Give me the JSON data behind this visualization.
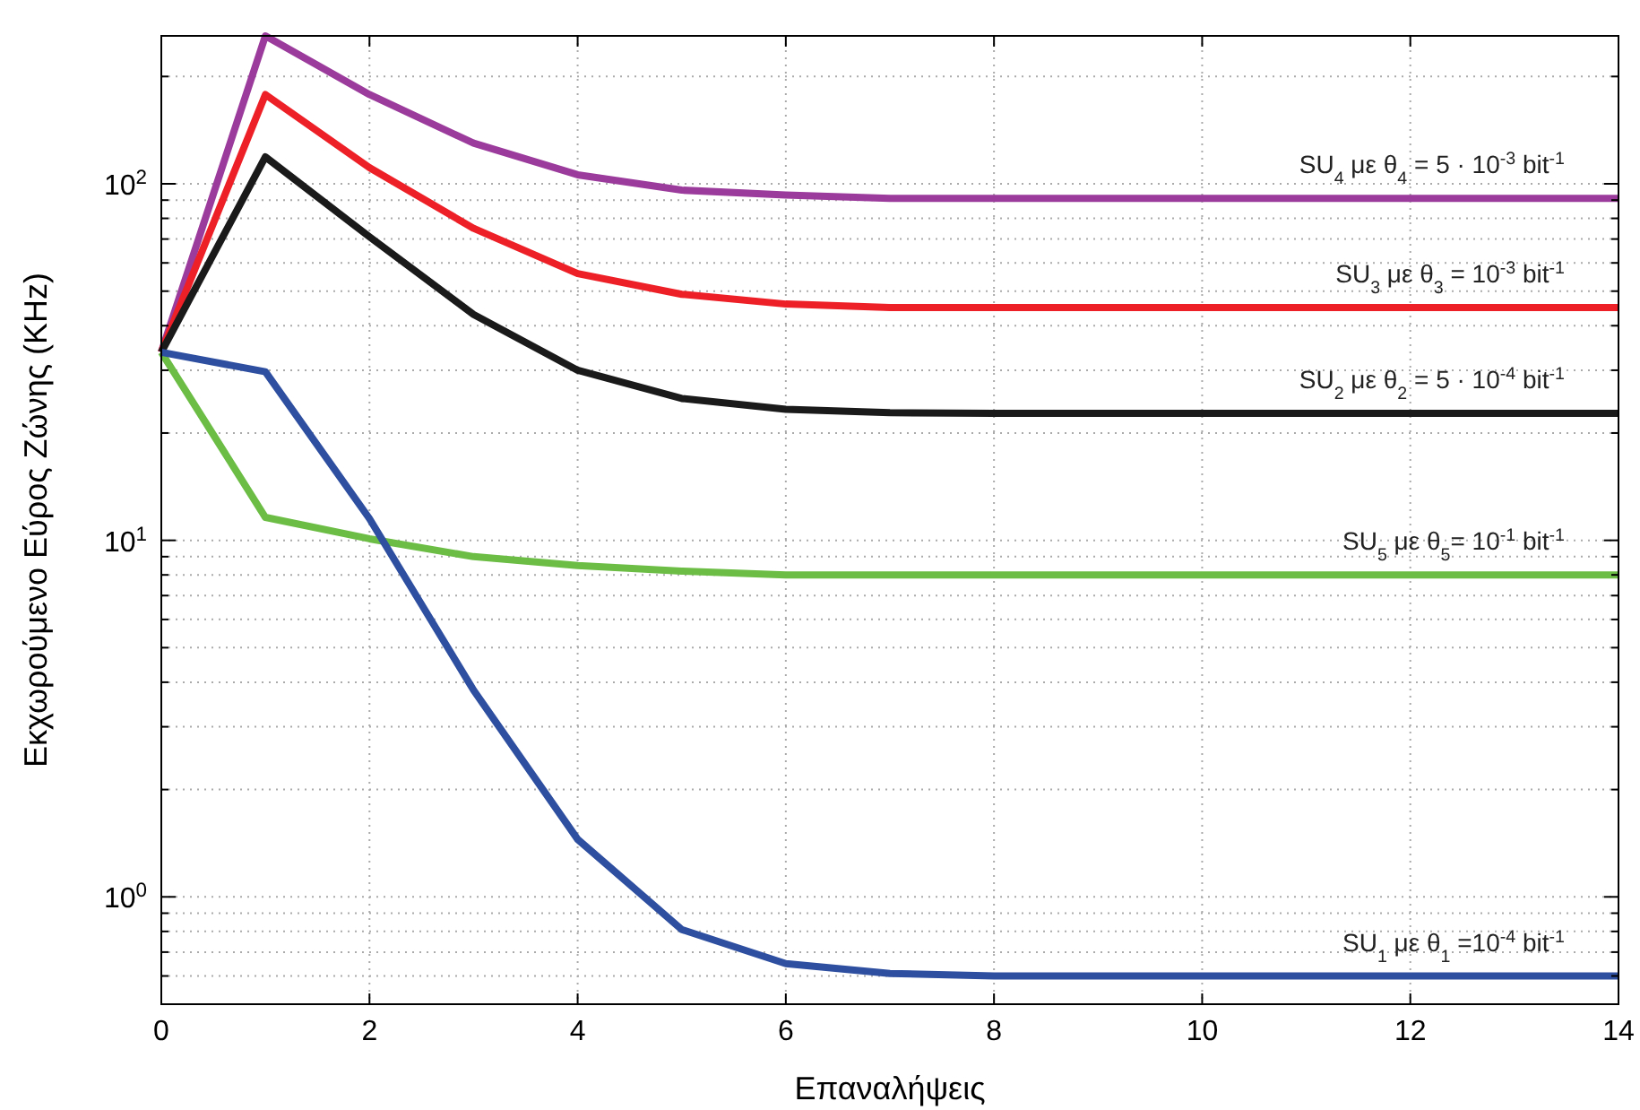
{
  "chart_data": {
    "type": "line",
    "xlabel": "Επαναλήψεις",
    "ylabel": "Εκχωρούμενο Εύρος Ζώνης (KHz)",
    "log": "y",
    "grid": true,
    "legend": false,
    "line_style": "solid",
    "marker": "none",
    "x": [
      0,
      1,
      2,
      3,
      4,
      5,
      6,
      7,
      8,
      9,
      10,
      11,
      12,
      13,
      14
    ],
    "xlim": [
      0,
      14
    ],
    "xticks": [
      0,
      2,
      4,
      6,
      8,
      10,
      12,
      14
    ],
    "ylim": [
      0.5,
      260
    ],
    "yticks": [
      {
        "value": 0.5,
        "label": null
      },
      {
        "value": 0.6,
        "label": null
      },
      {
        "value": 0.7,
        "label": null
      },
      {
        "value": 0.8,
        "label": null
      },
      {
        "value": 0.9,
        "label": null
      },
      {
        "value": 1,
        "label": "10$^{0}$"
      },
      {
        "value": 2,
        "label": null
      },
      {
        "value": 3,
        "label": null
      },
      {
        "value": 4,
        "label": null
      },
      {
        "value": 5,
        "label": null
      },
      {
        "value": 6,
        "label": null
      },
      {
        "value": 7,
        "label": null
      },
      {
        "value": 8,
        "label": null
      },
      {
        "value": 9,
        "label": null
      },
      {
        "value": 10,
        "label": "10$^{1}$"
      },
      {
        "value": 20,
        "label": null
      },
      {
        "value": 30,
        "label": null
      },
      {
        "value": 40,
        "label": null
      },
      {
        "value": 50,
        "label": null
      },
      {
        "value": 60,
        "label": null
      },
      {
        "value": 70,
        "label": null
      },
      {
        "value": 80,
        "label": null
      },
      {
        "value": 90,
        "label": null
      },
      {
        "value": 100,
        "label": "10$^{2}$"
      },
      {
        "value": 200,
        "label": null
      }
    ],
    "series": [
      {
        "name": "SU$_{4}$ με θ$_{4}$ = 5 · 10$^{-3}$ bit$^{-1}$",
        "color": "#9b3b9b",
        "values": [
          33.7,
          260,
          178,
          130,
          106,
          96,
          93,
          91,
          91,
          91,
          91,
          91,
          91,
          91,
          91
        ]
      },
      {
        "name": "SU$_{3}$ με θ$_{3}$ = 10$^{-3}$ bit$^{-1}$",
        "color": "#ee2027",
        "values": [
          33.7,
          178,
          111,
          75,
          56,
          49,
          46,
          45,
          45,
          45,
          45,
          45,
          45,
          45,
          45
        ]
      },
      {
        "name": "SU$_{2}$ με θ$_{2}$ = 5 · 10$^{-4}$ bit$^{-1}$",
        "color": "#1a1a1a",
        "values": [
          33.7,
          119,
          71,
          43,
          30,
          25,
          23.3,
          22.8,
          22.7,
          22.7,
          22.7,
          22.7,
          22.7,
          22.7,
          22.7
        ]
      },
      {
        "name": "SU$_{5}$ με θ$_{5}$= 10$^{-1}$ bit$^{-1}$",
        "color": "#6cbd45",
        "values": [
          33.7,
          11.6,
          10.1,
          9,
          8.5,
          8.2,
          8,
          8,
          8,
          8,
          8,
          8,
          8,
          8,
          8
        ]
      },
      {
        "name": "SU$_{1}$ με θ$_{1}$ =10$^{-4}$ bit$^{-1}$",
        "color": "#2e4fa0",
        "values": [
          33.7,
          29.7,
          11.5,
          3.8,
          1.45,
          0.81,
          0.65,
          0.61,
          0.6,
          0.6,
          0.6,
          0.6,
          0.6,
          0.6,
          0.6
        ]
      }
    ]
  }
}
